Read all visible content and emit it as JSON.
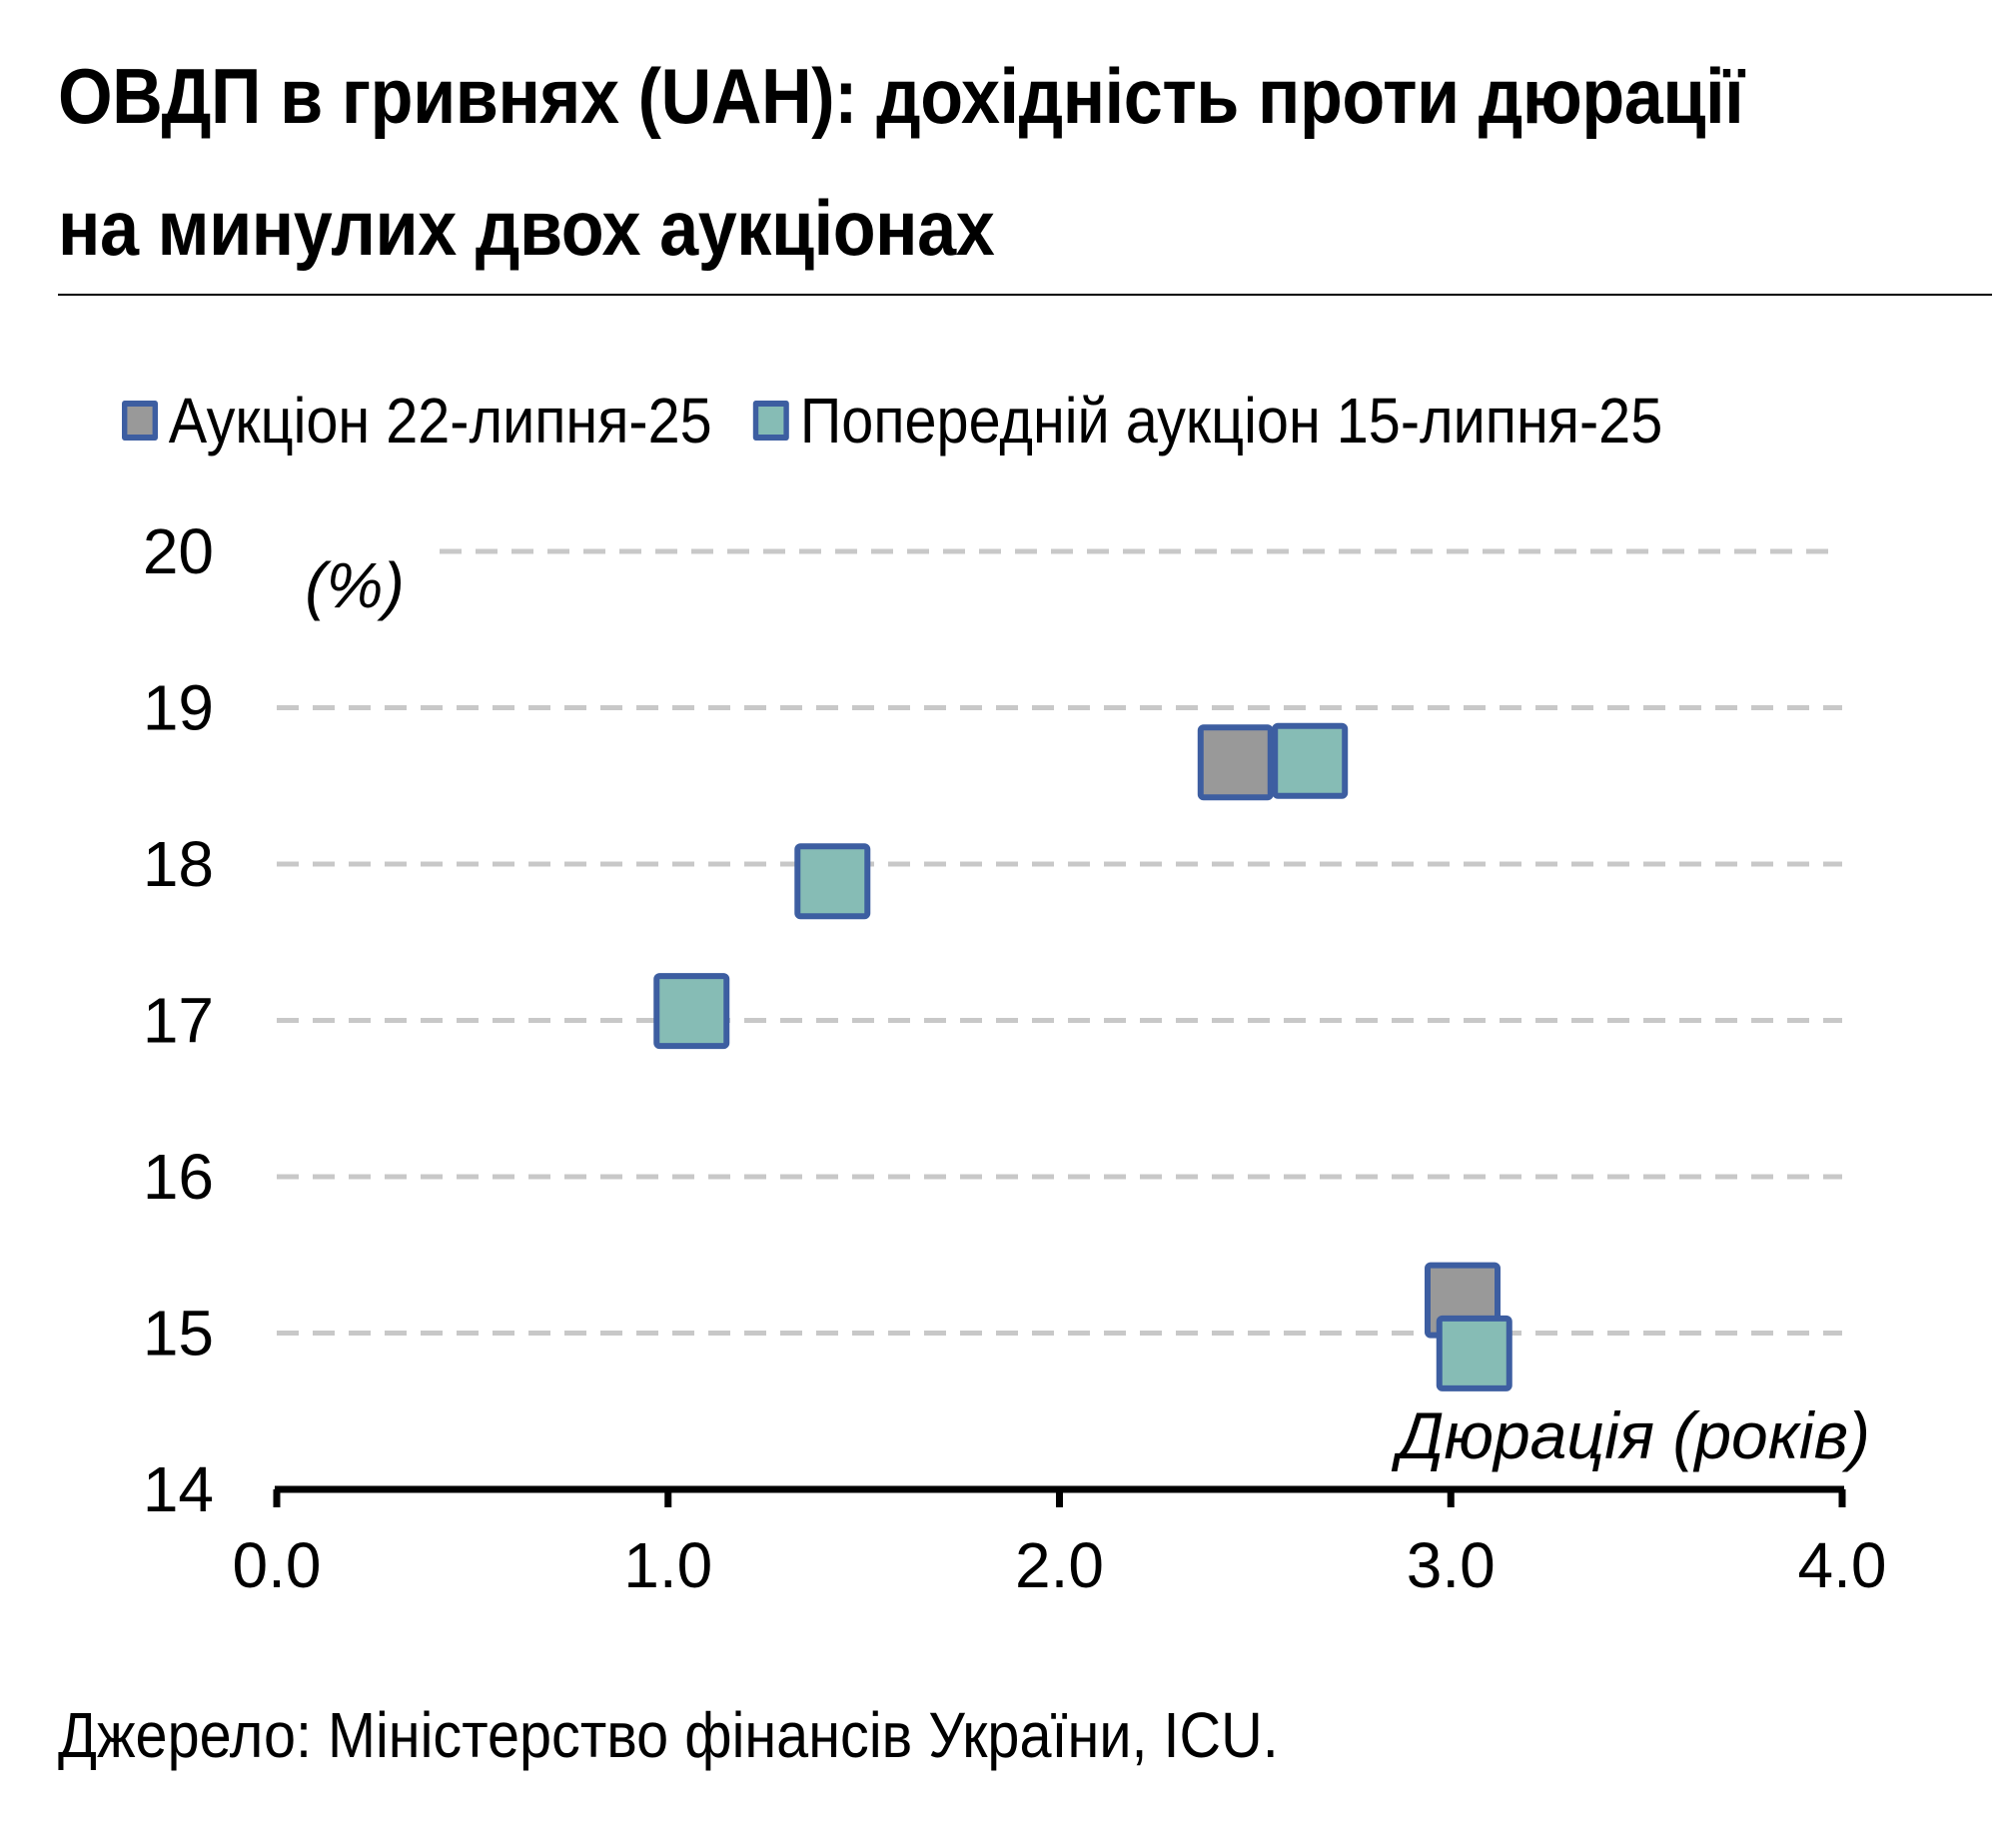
{
  "title": "ОВДП в гривнях (UAH): дохідність проти дюрації на минулих двох аукціонах",
  "source": "Джерело: Міністерство фінансів України, ICU.",
  "colors": {
    "series_current": "#999999",
    "series_previous": "#86bcb5",
    "marker_border": "#3d5ea1",
    "grid": "#c8c8c8",
    "axis": "#000000"
  },
  "legend": [
    {
      "label": "Аукціон 22-липня-25",
      "color": "#999999"
    },
    {
      "label": "Попередній аукціон 15-липня-25",
      "color": "#86bcb5"
    }
  ],
  "chart_data": {
    "type": "scatter",
    "title": "ОВДП в гривнях (UAH): дохідність проти дюрації на минулих двох аукціонах",
    "xlabel": "Дюрація (років)",
    "ylabel": "(%)",
    "xlim": [
      0,
      4
    ],
    "ylim": [
      14,
      20
    ],
    "xticks": [
      "0.0",
      "1.0",
      "2.0",
      "3.0",
      "4.0"
    ],
    "yticks": [
      "14",
      "15",
      "16",
      "17",
      "18",
      "19",
      "20"
    ],
    "grid": "horizontal dashed",
    "legend_position": "top",
    "series": [
      {
        "name": "Аукціон 22-липня-25",
        "color": "#999999",
        "points": [
          {
            "x": 2.45,
            "y": 18.65
          },
          {
            "x": 3.03,
            "y": 15.21
          }
        ]
      },
      {
        "name": "Попередній аукціон 15-липня-25",
        "color": "#86bcb5",
        "points": [
          {
            "x": 1.06,
            "y": 17.06
          },
          {
            "x": 1.42,
            "y": 17.89
          },
          {
            "x": 2.64,
            "y": 18.66
          },
          {
            "x": 3.06,
            "y": 14.87
          }
        ]
      }
    ]
  }
}
